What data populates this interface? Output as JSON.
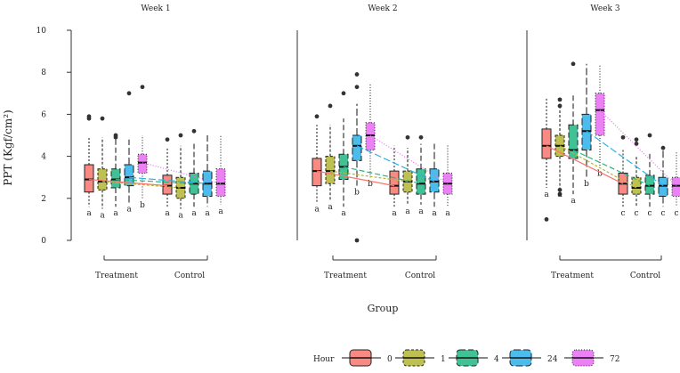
{
  "chart_data": {
    "type": "box",
    "ylabel": "PPT (Kgf/cm²)",
    "xlabel": "Group",
    "ylim": [
      0,
      10
    ],
    "yticks": [
      0,
      2,
      4,
      6,
      8,
      10
    ],
    "groups": [
      "Treatment",
      "Control"
    ],
    "legend": {
      "title": "Hour",
      "placement": "bottom",
      "entries": [
        {
          "label": "0",
          "color": "#F8766D",
          "dash": ""
        },
        {
          "label": "1",
          "color": "#B3B632",
          "dash": "3,2"
        },
        {
          "label": "4",
          "color": "#1FB782",
          "dash": "6,3"
        },
        {
          "label": "24",
          "color": "#2BB0E8",
          "dash": "8,3"
        },
        {
          "label": "72",
          "color": "#E76BF3",
          "dash": "1,2"
        }
      ]
    },
    "panels": [
      {
        "title": "Week 1",
        "boxes": [
          {
            "group": "Treatment",
            "hour": "0",
            "min": 1.6,
            "q1": 2.3,
            "median": 2.9,
            "q3": 3.6,
            "max": 4.9,
            "outliers": [
              5.8,
              5.9
            ],
            "letter": "a"
          },
          {
            "group": "Treatment",
            "hour": "1",
            "min": 1.5,
            "q1": 2.4,
            "median": 2.8,
            "q3": 3.4,
            "max": 4.9,
            "outliers": [
              5.8
            ],
            "letter": "a"
          },
          {
            "group": "Treatment",
            "hour": "4",
            "min": 1.6,
            "q1": 2.5,
            "median": 2.9,
            "q3": 3.4,
            "max": 4.8,
            "outliers": [
              4.9,
              5.0
            ],
            "letter": "a"
          },
          {
            "group": "Treatment",
            "hour": "24",
            "min": 1.8,
            "q1": 2.6,
            "median": 3.0,
            "q3": 3.6,
            "max": 4.8,
            "outliers": [
              7.0
            ],
            "letter": "a"
          },
          {
            "group": "Treatment",
            "hour": "72",
            "min": 2.0,
            "q1": 3.2,
            "median": 3.7,
            "q3": 4.1,
            "max": 5.0,
            "outliers": [
              7.3
            ],
            "letter": "b"
          },
          {
            "group": "Control",
            "hour": "0",
            "min": 1.6,
            "q1": 2.2,
            "median": 2.6,
            "q3": 3.1,
            "max": 4.4,
            "outliers": [
              4.8
            ],
            "letter": "a"
          },
          {
            "group": "Control",
            "hour": "1",
            "min": 1.5,
            "q1": 2.0,
            "median": 2.5,
            "q3": 3.0,
            "max": 4.5,
            "outliers": [
              5.0
            ],
            "letter": "a"
          },
          {
            "group": "Control",
            "hour": "4",
            "min": 1.6,
            "q1": 2.2,
            "median": 2.7,
            "q3": 3.2,
            "max": 4.6,
            "outliers": [
              5.2
            ],
            "letter": "a"
          },
          {
            "group": "Control",
            "hour": "24",
            "min": 1.6,
            "q1": 2.1,
            "median": 2.7,
            "q3": 3.3,
            "max": 5.0,
            "outliers": [],
            "letter": "a"
          },
          {
            "group": "Control",
            "hour": "72",
            "min": 1.7,
            "q1": 2.1,
            "median": 2.7,
            "q3": 3.4,
            "max": 5.0,
            "outliers": [],
            "letter": "a"
          }
        ]
      },
      {
        "title": "Week 2",
        "boxes": [
          {
            "group": "Treatment",
            "hour": "0",
            "min": 1.8,
            "q1": 2.6,
            "median": 3.3,
            "q3": 3.9,
            "max": 5.5,
            "outliers": [
              5.9
            ],
            "letter": "a"
          },
          {
            "group": "Treatment",
            "hour": "1",
            "min": 1.9,
            "q1": 2.7,
            "median": 3.3,
            "q3": 4.0,
            "max": 5.5,
            "outliers": [
              6.4
            ],
            "letter": "a"
          },
          {
            "group": "Treatment",
            "hour": "4",
            "min": 1.6,
            "q1": 2.9,
            "median": 3.5,
            "q3": 4.1,
            "max": 5.8,
            "outliers": [
              7.0
            ],
            "letter": "a"
          },
          {
            "group": "Treatment",
            "hour": "24",
            "min": 2.6,
            "q1": 3.8,
            "median": 4.5,
            "q3": 5.0,
            "max": 6.5,
            "outliers": [
              7.3,
              7.9,
              0.0
            ],
            "letter": "b"
          },
          {
            "group": "Treatment",
            "hour": "72",
            "min": 3.0,
            "q1": 4.3,
            "median": 5.0,
            "q3": 5.6,
            "max": 7.5,
            "outliers": [],
            "letter": "b"
          },
          {
            "group": "Control",
            "hour": "0",
            "min": 1.6,
            "q1": 2.2,
            "median": 2.6,
            "q3": 3.3,
            "max": 4.5,
            "outliers": [],
            "letter": "a"
          },
          {
            "group": "Control",
            "hour": "1",
            "min": 1.7,
            "q1": 2.3,
            "median": 2.8,
            "q3": 3.3,
            "max": 4.4,
            "outliers": [
              4.9
            ],
            "letter": "a"
          },
          {
            "group": "Control",
            "hour": "4",
            "min": 1.7,
            "q1": 2.2,
            "median": 2.7,
            "q3": 3.4,
            "max": 4.6,
            "outliers": [
              4.9
            ],
            "letter": "a"
          },
          {
            "group": "Control",
            "hour": "24",
            "min": 1.6,
            "q1": 2.3,
            "median": 2.8,
            "q3": 3.4,
            "max": 4.6,
            "outliers": [],
            "letter": "a"
          },
          {
            "group": "Control",
            "hour": "72",
            "min": 1.6,
            "q1": 2.2,
            "median": 2.7,
            "q3": 3.2,
            "max": 4.6,
            "outliers": [],
            "letter": "a"
          }
        ]
      },
      {
        "title": "Week 3",
        "boxes": [
          {
            "group": "Treatment",
            "hour": "0",
            "min": 2.5,
            "q1": 3.9,
            "median": 4.5,
            "q3": 5.3,
            "max": 6.8,
            "outliers": [
              1.0
            ],
            "letter": "a"
          },
          {
            "group": "Treatment",
            "hour": "1",
            "min": 2.5,
            "q1": 4.0,
            "median": 4.5,
            "q3": 5.0,
            "max": 6.3,
            "outliers": [
              6.4,
              6.7,
              2.2,
              2.4
            ],
            "letter": "a"
          },
          {
            "group": "Treatment",
            "hour": "4",
            "min": 2.2,
            "q1": 3.9,
            "median": 4.3,
            "q3": 5.5,
            "max": 7.0,
            "outliers": [
              8.4
            ],
            "letter": "a"
          },
          {
            "group": "Treatment",
            "hour": "24",
            "min": 3.0,
            "q1": 4.3,
            "median": 5.2,
            "q3": 6.0,
            "max": 8.4,
            "outliers": [],
            "letter": "b"
          },
          {
            "group": "Treatment",
            "hour": "72",
            "min": 3.5,
            "q1": 5.0,
            "median": 6.2,
            "q3": 7.0,
            "max": 8.4,
            "outliers": [],
            "letter": "b"
          },
          {
            "group": "Control",
            "hour": "0",
            "min": 1.6,
            "q1": 2.2,
            "median": 2.7,
            "q3": 3.2,
            "max": 4.3,
            "outliers": [
              4.9
            ],
            "letter": "c"
          },
          {
            "group": "Control",
            "hour": "1",
            "min": 1.6,
            "q1": 2.2,
            "median": 2.5,
            "q3": 3.0,
            "max": 4.0,
            "outliers": [
              4.6,
              4.8
            ],
            "letter": "c"
          },
          {
            "group": "Control",
            "hour": "4",
            "min": 1.6,
            "q1": 2.2,
            "median": 2.6,
            "q3": 3.1,
            "max": 4.2,
            "outliers": [
              5.0
            ],
            "letter": "c"
          },
          {
            "group": "Control",
            "hour": "24",
            "min": 1.6,
            "q1": 2.1,
            "median": 2.6,
            "q3": 3.0,
            "max": 4.3,
            "outliers": [
              4.4
            ],
            "letter": "c"
          },
          {
            "group": "Control",
            "hour": "72",
            "min": 1.6,
            "q1": 2.1,
            "median": 2.6,
            "q3": 3.0,
            "max": 4.2,
            "outliers": [],
            "letter": "c"
          }
        ]
      }
    ]
  }
}
